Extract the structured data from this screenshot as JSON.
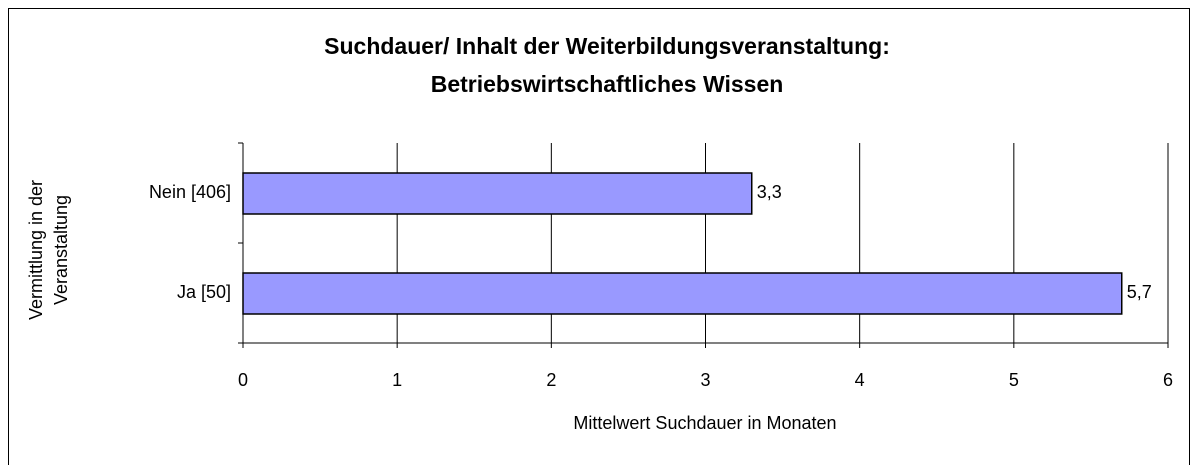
{
  "chart_data": {
    "type": "bar",
    "orientation": "horizontal",
    "title": [
      "Suchdauer/ Inhalt der Weiterbildungsveranstaltung:",
      "Betriebswirtschaftliches Wissen"
    ],
    "y_label": [
      "Vermittlung in der",
      "Veranstaltung"
    ],
    "x_label": "Mittelwert Suchdauer in Monaten",
    "categories": [
      "Nein [406]",
      "Ja [50]"
    ],
    "values": [
      3.3,
      5.7
    ],
    "value_labels": [
      "3,3",
      "5,7"
    ],
    "color": "#9999ff",
    "xlim": [
      0,
      6
    ],
    "xticks": [
      0,
      1,
      2,
      3,
      4,
      5,
      6
    ],
    "grid": true
  }
}
